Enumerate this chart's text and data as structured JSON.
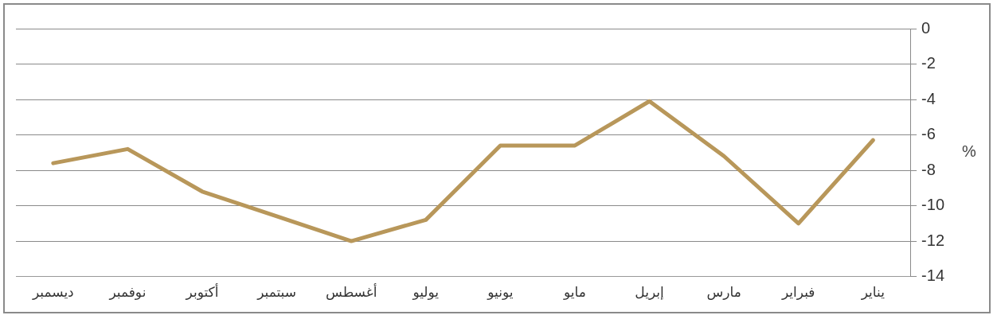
{
  "chart_data": {
    "type": "line",
    "ylabel": "%",
    "categories": [
      "ديسمبر",
      "نوفمبر",
      "أكتوبر",
      "سبتمبر",
      "أغسطس",
      "يوليو",
      "يونيو",
      "مايو",
      "إبريل",
      "مارس",
      "فبراير",
      "يناير"
    ],
    "series": [
      {
        "color": "#b8975a",
        "values": [
          -7.6,
          -6.8,
          -9.2,
          -10.6,
          -12.0,
          -10.8,
          -6.6,
          -6.6,
          -4.1,
          -7.2,
          -11.0,
          -6.3
        ]
      }
    ],
    "ylim": [
      -14,
      0
    ],
    "yticks": [
      0,
      -2,
      -4,
      -6,
      -8,
      -10,
      -12,
      -14
    ],
    "grid": "y",
    "legend": false,
    "marker": "none",
    "line_style": "solid"
  }
}
